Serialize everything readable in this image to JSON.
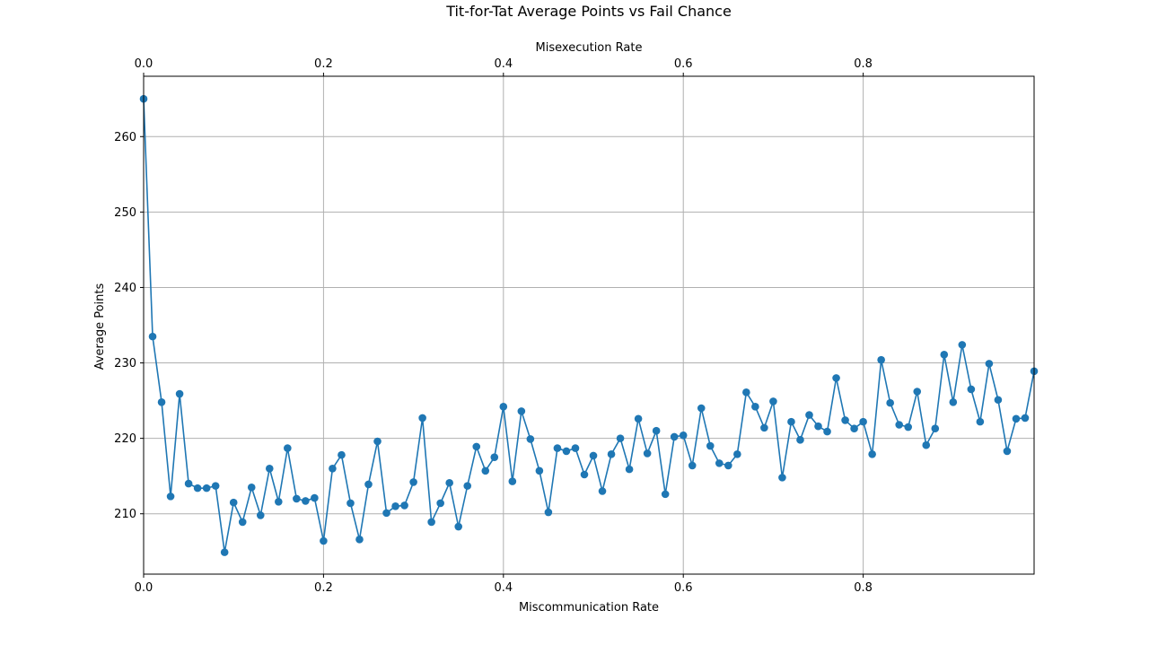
{
  "chart_data": {
    "type": "line",
    "title": "Tit-for-Tat Average Points vs Fail Chance",
    "xlabel": "Miscommunication Rate",
    "xlabel_top": "Misexecution Rate",
    "ylabel": "Average Points",
    "xlim": [
      0,
      0.99
    ],
    "ylim": [
      202,
      268
    ],
    "xticks": [
      0,
      0.2,
      0.4,
      0.6,
      0.8
    ],
    "xtick_labels": [
      "0.0",
      "0.2",
      "0.4",
      "0.6",
      "0.8"
    ],
    "yticks": [
      210,
      220,
      230,
      240,
      250,
      260
    ],
    "ytick_labels": [
      "210",
      "220",
      "230",
      "240",
      "250",
      "260"
    ],
    "grid": true,
    "color": "#1f77b4",
    "marker": "circle",
    "series": [
      {
        "x": [
          0.0,
          0.01,
          0.02,
          0.03,
          0.04,
          0.05,
          0.06,
          0.07,
          0.08,
          0.09,
          0.1,
          0.11,
          0.12,
          0.13,
          0.14,
          0.15,
          0.16,
          0.17,
          0.18,
          0.19,
          0.2,
          0.21,
          0.22,
          0.23,
          0.24,
          0.25,
          0.26,
          0.27,
          0.28,
          0.29,
          0.3,
          0.31,
          0.32,
          0.33,
          0.34,
          0.35,
          0.36,
          0.37,
          0.38,
          0.39,
          0.4,
          0.41,
          0.42,
          0.43,
          0.44,
          0.45,
          0.46,
          0.47,
          0.48,
          0.49,
          0.5,
          0.51,
          0.52,
          0.53,
          0.54,
          0.55,
          0.56,
          0.57,
          0.58,
          0.59,
          0.6,
          0.61,
          0.62,
          0.63,
          0.64,
          0.65,
          0.66,
          0.67,
          0.68,
          0.69,
          0.7,
          0.71,
          0.72,
          0.73,
          0.74,
          0.75,
          0.76,
          0.77,
          0.78,
          0.79,
          0.8,
          0.81,
          0.82,
          0.83,
          0.84,
          0.85,
          0.86,
          0.87,
          0.88,
          0.89,
          0.9,
          0.91,
          0.92,
          0.93,
          0.94,
          0.95,
          0.96,
          0.97,
          0.98,
          0.99
        ],
        "values": [
          265.0,
          233.5,
          224.8,
          212.3,
          225.9,
          214.0,
          213.4,
          213.4,
          213.7,
          204.9,
          211.5,
          208.9,
          213.5,
          209.8,
          216.0,
          211.6,
          218.7,
          212.0,
          211.7,
          212.1,
          206.4,
          216.0,
          217.8,
          211.4,
          206.6,
          213.9,
          219.6,
          210.1,
          211.0,
          211.1,
          214.2,
          222.7,
          208.9,
          211.4,
          214.1,
          208.3,
          213.7,
          218.9,
          215.7,
          217.5,
          224.2,
          214.3,
          223.6,
          219.9,
          215.7,
          210.2,
          218.7,
          218.3,
          218.7,
          215.2,
          217.7,
          213.0,
          217.9,
          220.0,
          215.9,
          222.6,
          218.0,
          221.0,
          212.6,
          220.2,
          220.4,
          216.4,
          224.0,
          219.0,
          216.7,
          216.4,
          217.9,
          226.1,
          224.2,
          221.4,
          224.9,
          214.8,
          222.2,
          219.8,
          223.1,
          221.6,
          220.9,
          228.0,
          222.4,
          221.3,
          222.2,
          217.9,
          230.4,
          224.7,
          221.8,
          221.5,
          226.2,
          219.1,
          221.3,
          231.1,
          224.8,
          232.4,
          226.5,
          222.2,
          229.9,
          225.1,
          218.3,
          222.6,
          222.7,
          228.9
        ]
      }
    ]
  }
}
